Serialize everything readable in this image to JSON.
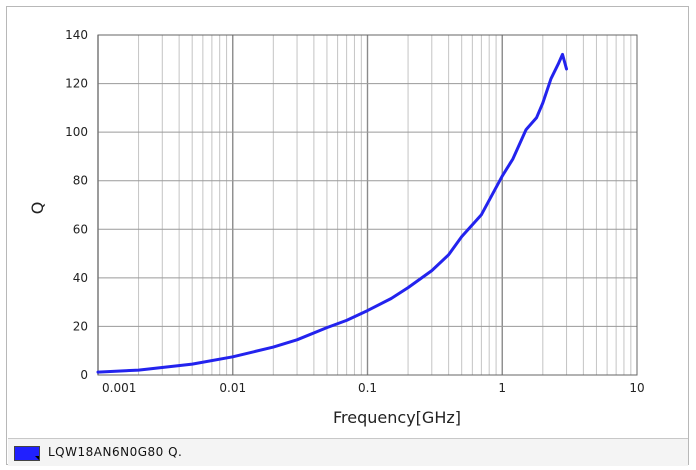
{
  "chart_data": {
    "type": "line",
    "xlabel": "Frequency[GHz]",
    "ylabel": "Q",
    "x_scale": "log",
    "xlim": [
      0.001,
      10
    ],
    "ylim": [
      0,
      140
    ],
    "x_ticks": [
      {
        "value": 0.001,
        "label": "0.001"
      },
      {
        "value": 0.01,
        "label": "0.01"
      },
      {
        "value": 0.1,
        "label": "0.1"
      },
      {
        "value": 1,
        "label": "1"
      },
      {
        "value": 10,
        "label": "10"
      }
    ],
    "y_ticks": [
      {
        "value": 0,
        "label": "0"
      },
      {
        "value": 20,
        "label": "20"
      },
      {
        "value": 40,
        "label": "40"
      },
      {
        "value": 60,
        "label": "60"
      },
      {
        "value": 80,
        "label": "80"
      },
      {
        "value": 100,
        "label": "100"
      },
      {
        "value": 120,
        "label": "120"
      },
      {
        "value": 140,
        "label": "140"
      }
    ],
    "grid": true,
    "legend_position": "bottom",
    "series": [
      {
        "name": "LQW18AN6N0G80 Q.",
        "color": "#2323ee",
        "points": [
          [
            0.001,
            1.2
          ],
          [
            0.002,
            2.0
          ],
          [
            0.005,
            4.5
          ],
          [
            0.01,
            7.5
          ],
          [
            0.02,
            11.5
          ],
          [
            0.03,
            14.5
          ],
          [
            0.05,
            19.5
          ],
          [
            0.07,
            22.5
          ],
          [
            0.1,
            26.5
          ],
          [
            0.15,
            31.5
          ],
          [
            0.2,
            36.0
          ],
          [
            0.3,
            43.0
          ],
          [
            0.4,
            49.5
          ],
          [
            0.5,
            57.0
          ],
          [
            0.7,
            66.0
          ],
          [
            1.0,
            82.0
          ],
          [
            1.2,
            89.0
          ],
          [
            1.5,
            101.0
          ],
          [
            1.8,
            106.0
          ],
          [
            2.0,
            112.0
          ],
          [
            2.3,
            122.0
          ],
          [
            2.6,
            128.0
          ],
          [
            2.8,
            132.0
          ],
          [
            3.0,
            126.0
          ]
        ]
      }
    ]
  },
  "legend": {
    "swatch_color": "#2020ff",
    "label": "LQW18AN6N0G80 Q."
  }
}
